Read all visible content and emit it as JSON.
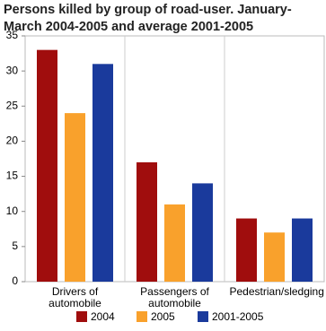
{
  "chart_data": {
    "type": "bar",
    "title": "Persons killed by group of road-user. January-March 2004-2005 and average 2001-2005",
    "categories": [
      "Drivers of automobile",
      "Passengers of automobile",
      "Pedestrian/sledging"
    ],
    "series": [
      {
        "name": "2004",
        "color": "#a00d0d",
        "values": [
          33,
          17,
          9
        ]
      },
      {
        "name": "2005",
        "color": "#f9a12c",
        "values": [
          24,
          11,
          7
        ]
      },
      {
        "name": "2001-2005",
        "color": "#1a3a9c",
        "values": [
          31,
          14,
          9
        ]
      }
    ],
    "ylim": [
      0,
      35
    ],
    "yticks": [
      0,
      5,
      10,
      15,
      20,
      25,
      30,
      35
    ],
    "grid": false
  }
}
